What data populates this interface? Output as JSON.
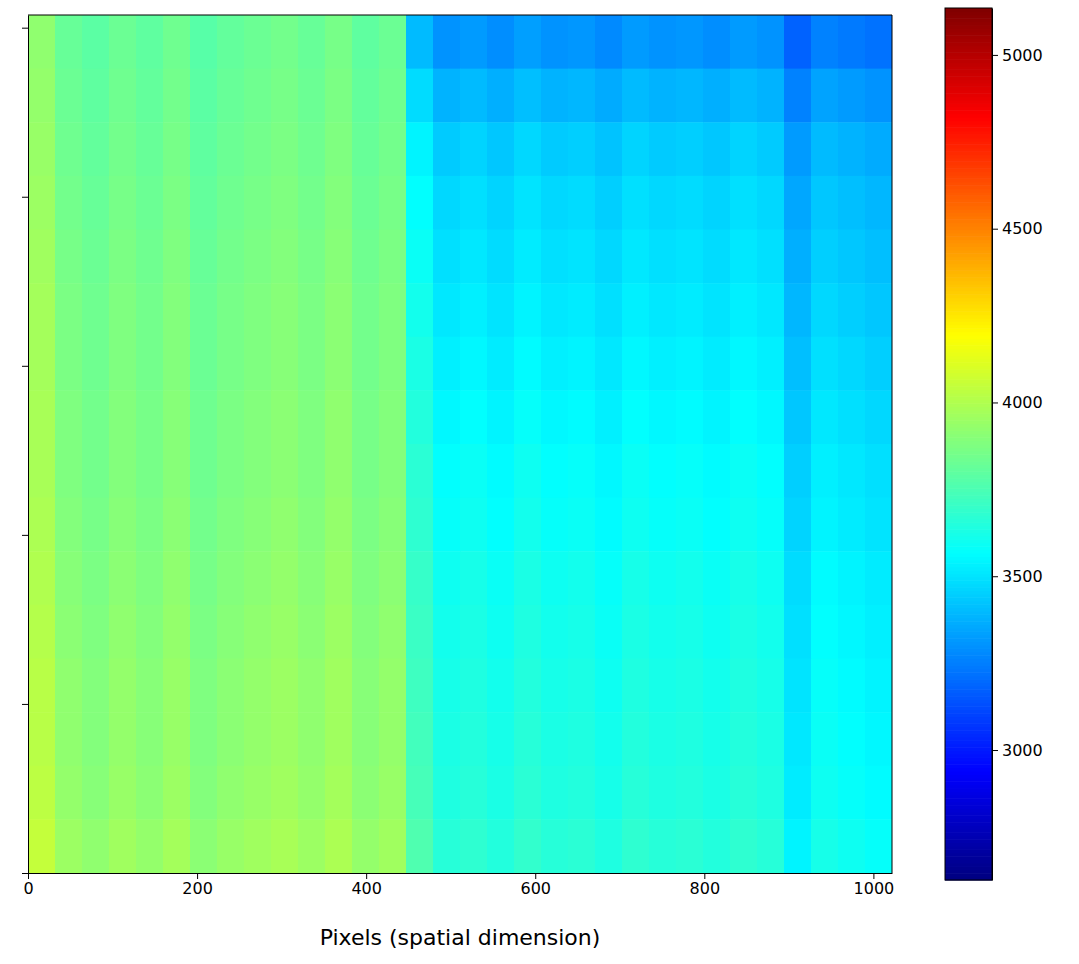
{
  "chart_data": {
    "type": "heatmap",
    "x_label": "Pixels (spatial dimension)",
    "xlim": [
      0,
      1022
    ],
    "xticks": [
      0,
      200,
      400,
      600,
      800,
      1000
    ],
    "ylim": [
      0,
      1015
    ],
    "yticks": [
      0,
      200,
      400,
      600,
      800,
      1000
    ],
    "tick_labels": "x",
    "colorbar_range": [
      2626,
      5135
    ],
    "colorbar_ticks": [
      3000,
      3500,
      4000,
      4500,
      5000
    ],
    "cells": [
      [
        3920,
        3820,
        3790,
        3830,
        3800,
        3840,
        3780,
        3810,
        3830,
        3850,
        3820,
        3860,
        3800,
        3830,
        3400,
        3300,
        3320,
        3290,
        3330,
        3300,
        3310,
        3280,
        3320,
        3300,
        3310,
        3290,
        3320,
        3300,
        3180,
        3260,
        3240,
        3220
      ],
      [
        3930,
        3830,
        3800,
        3840,
        3810,
        3850,
        3790,
        3820,
        3840,
        3860,
        3830,
        3870,
        3810,
        3840,
        3480,
        3380,
        3400,
        3370,
        3410,
        3380,
        3390,
        3360,
        3400,
        3380,
        3390,
        3370,
        3400,
        3380,
        3260,
        3340,
        3320,
        3300
      ],
      [
        3940,
        3840,
        3810,
        3850,
        3820,
        3860,
        3800,
        3830,
        3850,
        3870,
        3840,
        3880,
        3820,
        3850,
        3540,
        3440,
        3460,
        3430,
        3470,
        3440,
        3450,
        3420,
        3460,
        3440,
        3450,
        3430,
        3460,
        3440,
        3320,
        3400,
        3380,
        3360
      ],
      [
        3950,
        3850,
        3820,
        3860,
        3830,
        3870,
        3810,
        3840,
        3860,
        3880,
        3850,
        3890,
        3830,
        3860,
        3570,
        3470,
        3490,
        3460,
        3500,
        3470,
        3480,
        3450,
        3490,
        3470,
        3480,
        3460,
        3490,
        3470,
        3350,
        3430,
        3410,
        3390
      ],
      [
        3960,
        3860,
        3830,
        3870,
        3840,
        3880,
        3820,
        3850,
        3870,
        3890,
        3860,
        3900,
        3840,
        3870,
        3590,
        3490,
        3510,
        3480,
        3520,
        3490,
        3500,
        3470,
        3510,
        3490,
        3500,
        3480,
        3510,
        3490,
        3370,
        3450,
        3430,
        3410
      ],
      [
        3970,
        3870,
        3840,
        3880,
        3850,
        3890,
        3830,
        3860,
        3880,
        3900,
        3870,
        3910,
        3850,
        3880,
        3610,
        3510,
        3530,
        3500,
        3540,
        3510,
        3520,
        3490,
        3530,
        3510,
        3520,
        3500,
        3530,
        3510,
        3390,
        3470,
        3450,
        3430
      ],
      [
        3970,
        3870,
        3840,
        3880,
        3850,
        3890,
        3830,
        3860,
        3880,
        3900,
        3870,
        3910,
        3850,
        3880,
        3630,
        3530,
        3550,
        3520,
        3560,
        3530,
        3540,
        3510,
        3550,
        3530,
        3540,
        3520,
        3550,
        3530,
        3410,
        3490,
        3470,
        3450
      ],
      [
        3980,
        3880,
        3850,
        3890,
        3860,
        3900,
        3840,
        3870,
        3890,
        3910,
        3880,
        3920,
        3860,
        3890,
        3650,
        3550,
        3570,
        3540,
        3580,
        3550,
        3560,
        3530,
        3570,
        3550,
        3560,
        3540,
        3570,
        3550,
        3430,
        3510,
        3490,
        3470
      ],
      [
        3980,
        3880,
        3850,
        3890,
        3860,
        3900,
        3840,
        3870,
        3890,
        3910,
        3880,
        3920,
        3860,
        3890,
        3670,
        3570,
        3590,
        3560,
        3600,
        3570,
        3580,
        3550,
        3590,
        3570,
        3580,
        3560,
        3590,
        3570,
        3450,
        3530,
        3510,
        3490
      ],
      [
        3990,
        3890,
        3860,
        3900,
        3870,
        3910,
        3850,
        3880,
        3900,
        3920,
        3890,
        3930,
        3870,
        3900,
        3680,
        3580,
        3600,
        3570,
        3610,
        3580,
        3590,
        3560,
        3600,
        3580,
        3590,
        3570,
        3600,
        3580,
        3460,
        3540,
        3520,
        3500
      ],
      [
        4000,
        3900,
        3870,
        3910,
        3880,
        3920,
        3860,
        3890,
        3910,
        3930,
        3900,
        3940,
        3880,
        3910,
        3700,
        3600,
        3620,
        3590,
        3630,
        3600,
        3610,
        3580,
        3620,
        3600,
        3610,
        3590,
        3620,
        3600,
        3480,
        3560,
        3540,
        3520
      ],
      [
        4010,
        3910,
        3880,
        3920,
        3890,
        3930,
        3870,
        3900,
        3920,
        3940,
        3910,
        3950,
        3890,
        3920,
        3710,
        3610,
        3630,
        3600,
        3640,
        3610,
        3620,
        3590,
        3630,
        3610,
        3620,
        3600,
        3630,
        3610,
        3490,
        3570,
        3550,
        3530
      ],
      [
        4020,
        3920,
        3890,
        3930,
        3900,
        3940,
        3880,
        3910,
        3930,
        3950,
        3920,
        3960,
        3900,
        3930,
        3720,
        3620,
        3640,
        3610,
        3650,
        3620,
        3630,
        3600,
        3640,
        3620,
        3630,
        3610,
        3640,
        3620,
        3500,
        3580,
        3560,
        3540
      ],
      [
        4020,
        3920,
        3890,
        3930,
        3900,
        3940,
        3880,
        3910,
        3930,
        3950,
        3920,
        3960,
        3900,
        3930,
        3730,
        3630,
        3650,
        3620,
        3660,
        3630,
        3640,
        3610,
        3650,
        3630,
        3640,
        3620,
        3650,
        3630,
        3510,
        3590,
        3570,
        3550
      ],
      [
        4030,
        3930,
        3900,
        3940,
        3910,
        3950,
        3890,
        3920,
        3940,
        3960,
        3930,
        3970,
        3910,
        3940,
        3740,
        3640,
        3660,
        3630,
        3670,
        3640,
        3650,
        3620,
        3660,
        3640,
        3650,
        3630,
        3660,
        3640,
        3520,
        3600,
        3580,
        3560
      ],
      [
        4050,
        3950,
        3920,
        3960,
        3930,
        3970,
        3910,
        3940,
        3960,
        3980,
        3950,
        3990,
        3930,
        3960,
        3760,
        3660,
        3680,
        3650,
        3690,
        3660,
        3670,
        3640,
        3680,
        3660,
        3670,
        3650,
        3680,
        3660,
        3540,
        3620,
        3600,
        3580
      ]
    ]
  }
}
